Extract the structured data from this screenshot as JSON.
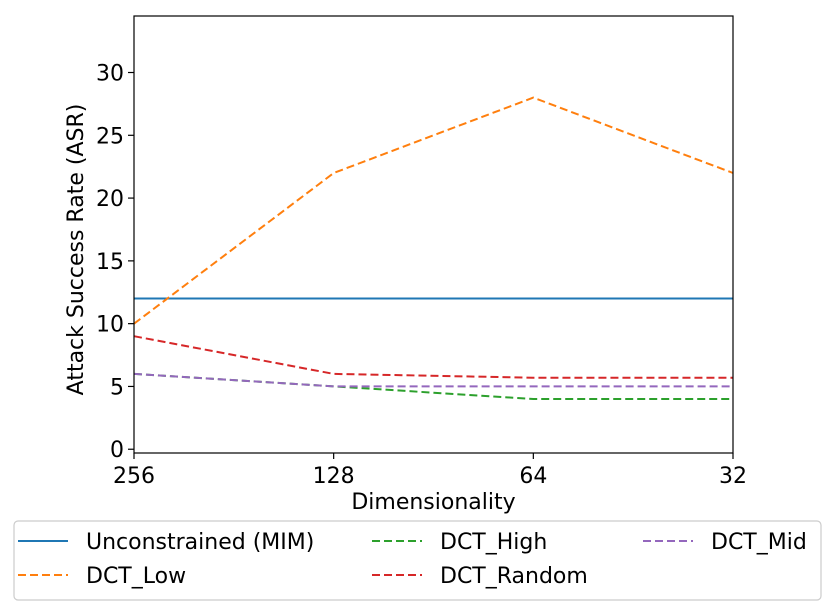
{
  "chart_data": {
    "type": "line",
    "title": "",
    "xlabel": "Dimensionality",
    "ylabel": "Attack Success Rate (ASR)",
    "categories": [
      "256",
      "128",
      "64",
      "32"
    ],
    "ylim": [
      -0.3,
      34.5
    ],
    "yticks": [
      "0",
      "5",
      "10",
      "15",
      "20",
      "25",
      "30"
    ],
    "grid": false,
    "legend_position": "bottom",
    "series": [
      {
        "name": "Unconstrained (MIM)",
        "color": "#1f77b4",
        "dash": "solid",
        "values": [
          12,
          12,
          12,
          12
        ]
      },
      {
        "name": "DCT_Low",
        "color": "#ff7f0e",
        "dash": "dashed",
        "values": [
          10,
          22,
          28,
          22
        ]
      },
      {
        "name": "DCT_High",
        "color": "#2ca02c",
        "dash": "dashed",
        "values": [
          6,
          5,
          4,
          4
        ]
      },
      {
        "name": "DCT_Random",
        "color": "#d62728",
        "dash": "dashed",
        "values": [
          9,
          6,
          5.7,
          5.7
        ]
      },
      {
        "name": "DCT_Mid",
        "color": "#9467bd",
        "dash": "dashed",
        "values": [
          6,
          5,
          5,
          5
        ]
      }
    ]
  }
}
